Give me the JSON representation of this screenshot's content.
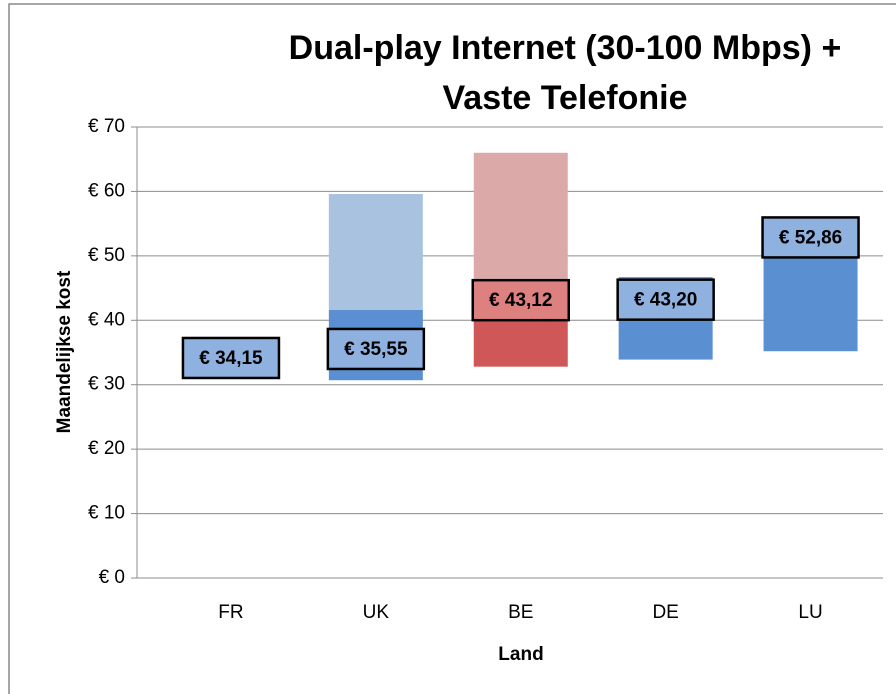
{
  "chart_data": {
    "type": "floating-bar",
    "title": [
      "Dual-play Internet (30-100 Mbps) +",
      "Vaste Telefonie"
    ],
    "y_label": "Maandelijkse kost",
    "x_label": "Land",
    "categories": [
      "FR",
      "UK",
      "BE",
      "DE",
      "LU"
    ],
    "series": [
      {
        "values": [
          31.1,
          30.7,
          32.8,
          33.9,
          35.2
        ],
        "colors": [
          "none",
          "none",
          "none",
          "none",
          "none"
        ]
      },
      {
        "values": [
          5.1,
          10.9,
          10.2,
          12.8,
          18.5
        ],
        "colors": [
          "#5a8fd2",
          "#5a8fd2",
          "#cf5757",
          "#5a8fd2",
          "#5a8fd2"
        ]
      },
      {
        "values": [
          0,
          18,
          23,
          0,
          0
        ],
        "colors": [
          "#a9c2e0",
          "#a9c2e0",
          "#dca9a9",
          "#a9c2e0",
          "#a9c2e0"
        ]
      }
    ],
    "markers": {
      "values": [
        34.15,
        35.55,
        43.12,
        43.2,
        52.86
      ],
      "value_labels": [
        "€ 34,15",
        "€ 35,55",
        "€ 43,12",
        "€ 43,20",
        "€ 52,86"
      ],
      "colors": [
        "#8fb1df",
        "#8fb1df",
        "#dd8080",
        "#8fb1df",
        "#8fb1df"
      ]
    },
    "ylim": [
      0,
      70
    ],
    "yticks": [
      {
        "value": 0,
        "label": "€ 0"
      },
      {
        "value": 10,
        "label": "€ 10"
      },
      {
        "value": 20,
        "label": "€ 20"
      },
      {
        "value": 30,
        "label": "€ 30"
      },
      {
        "value": 40,
        "label": "€ 40"
      },
      {
        "value": 50,
        "label": "€ 50"
      },
      {
        "value": 60,
        "label": "€ 60"
      },
      {
        "value": 70,
        "label": "€ 70"
      }
    ],
    "grid": true
  }
}
